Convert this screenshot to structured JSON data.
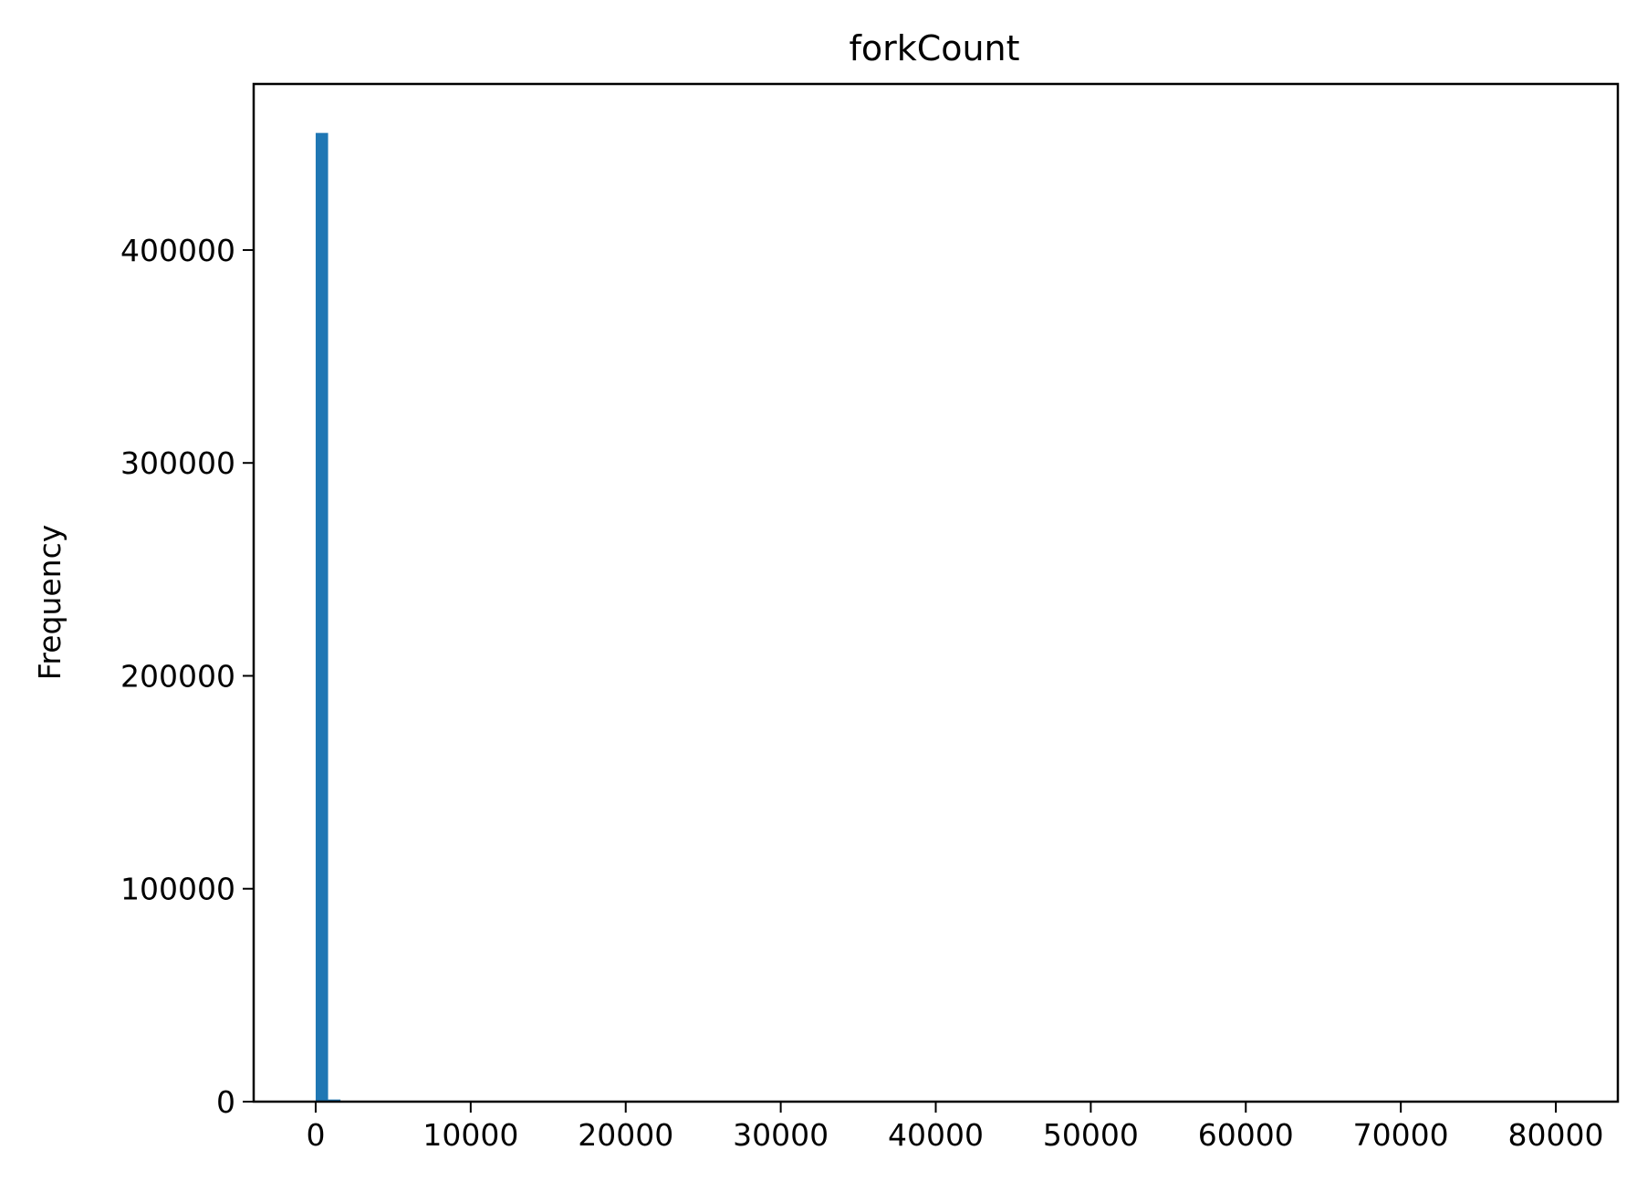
{
  "chart_data": {
    "type": "bar",
    "title": "forkCount",
    "xlabel": "",
    "ylabel": "Frequency",
    "xlim": [
      -4000,
      84000
    ],
    "ylim": [
      0,
      478000
    ],
    "bin_width": 800,
    "bars": [
      {
        "x_start": 0,
        "x_end": 800,
        "value": 455000
      },
      {
        "x_start": 800,
        "x_end": 1600,
        "value": 1000
      }
    ],
    "x_ticks": [
      0,
      10000,
      20000,
      30000,
      40000,
      50000,
      60000,
      70000,
      80000
    ],
    "y_ticks": [
      0,
      100000,
      200000,
      300000,
      400000
    ],
    "x_tick_labels": [
      "0",
      "10000",
      "20000",
      "30000",
      "40000",
      "50000",
      "60000",
      "70000",
      "80000"
    ],
    "y_tick_labels": [
      "0",
      "100000",
      "200000",
      "300000",
      "400000"
    ],
    "bar_color": "#1f77b4",
    "grid": false,
    "legend": "none"
  }
}
